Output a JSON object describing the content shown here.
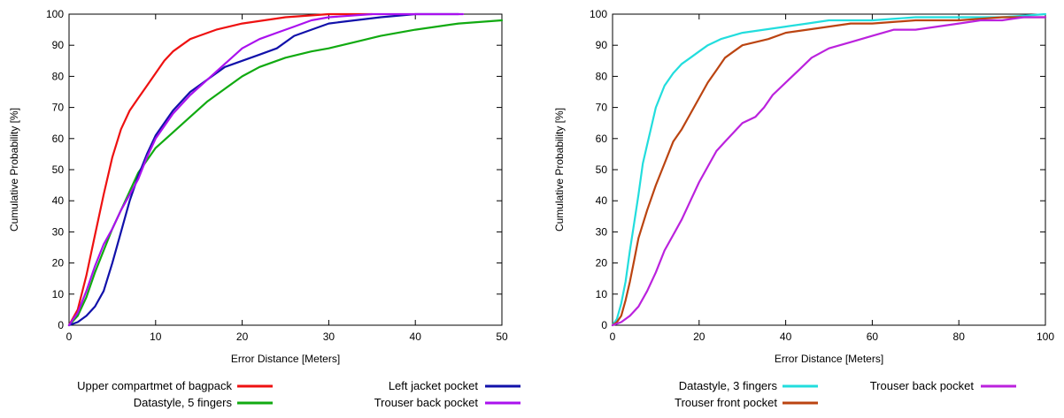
{
  "chart_data": [
    {
      "type": "line",
      "title": "",
      "xlabel": "Error Distance [Meters]",
      "ylabel": "Cumulative Probability [%]",
      "xlim": [
        0,
        50
      ],
      "ylim": [
        0,
        100
      ],
      "xticks": [
        "0",
        "10",
        "20",
        "30",
        "40",
        "50"
      ],
      "yticks": [
        "0",
        "10",
        "20",
        "30",
        "40",
        "50",
        "60",
        "70",
        "80",
        "90",
        "100"
      ],
      "grid": false,
      "legend": "below",
      "series": [
        {
          "name": "Upper compartmet of bagpack",
          "color": "#ee1111",
          "points": [
            [
              0,
              0
            ],
            [
              1,
              5
            ],
            [
              2,
              16
            ],
            [
              3,
              29
            ],
            [
              4,
              42
            ],
            [
              5,
              54
            ],
            [
              6,
              63
            ],
            [
              7,
              69
            ],
            [
              8,
              73
            ],
            [
              9,
              77
            ],
            [
              10,
              81
            ],
            [
              11,
              85
            ],
            [
              12,
              88
            ],
            [
              13,
              90
            ],
            [
              14,
              92
            ],
            [
              15,
              93
            ],
            [
              17,
              95
            ],
            [
              20,
              97
            ],
            [
              25,
              99
            ],
            [
              30,
              100
            ],
            [
              35,
              100
            ]
          ]
        },
        {
          "name": "Datastyle, 5 fingers",
          "color": "#11aa11",
          "points": [
            [
              0,
              0
            ],
            [
              1,
              3
            ],
            [
              2,
              9
            ],
            [
              3,
              17
            ],
            [
              4,
              24
            ],
            [
              5,
              31
            ],
            [
              6,
              37
            ],
            [
              7,
              43
            ],
            [
              8,
              49
            ],
            [
              9,
              53
            ],
            [
              10,
              57
            ],
            [
              12,
              62
            ],
            [
              14,
              67
            ],
            [
              16,
              72
            ],
            [
              18,
              76
            ],
            [
              20,
              80
            ],
            [
              22,
              83
            ],
            [
              25,
              86
            ],
            [
              28,
              88
            ],
            [
              30,
              89
            ],
            [
              33,
              91
            ],
            [
              36,
              93
            ],
            [
              40,
              95
            ],
            [
              45,
              97
            ],
            [
              50,
              98
            ]
          ]
        },
        {
          "name": "Left jacket pocket",
          "color": "#1111aa",
          "points": [
            [
              0,
              0
            ],
            [
              1,
              1
            ],
            [
              2,
              3
            ],
            [
              3,
              6
            ],
            [
              4,
              11
            ],
            [
              5,
              20
            ],
            [
              6,
              30
            ],
            [
              7,
              40
            ],
            [
              8,
              48
            ],
            [
              9,
              55
            ],
            [
              10,
              61
            ],
            [
              12,
              69
            ],
            [
              14,
              75
            ],
            [
              16,
              79
            ],
            [
              18,
              83
            ],
            [
              20,
              85
            ],
            [
              22,
              87
            ],
            [
              24,
              89
            ],
            [
              26,
              93
            ],
            [
              28,
              95
            ],
            [
              30,
              97
            ],
            [
              33,
              98
            ],
            [
              36,
              99
            ],
            [
              40,
              100
            ],
            [
              45,
              100
            ]
          ]
        },
        {
          "name": "Trouser back pocket",
          "color": "#aa11ee",
          "points": [
            [
              0,
              0
            ],
            [
              1,
              4
            ],
            [
              2,
              11
            ],
            [
              3,
              19
            ],
            [
              4,
              26
            ],
            [
              5,
              31
            ],
            [
              6,
              37
            ],
            [
              7,
              42
            ],
            [
              8,
              47
            ],
            [
              9,
              54
            ],
            [
              10,
              60
            ],
            [
              12,
              68
            ],
            [
              14,
              74
            ],
            [
              16,
              79
            ],
            [
              18,
              84
            ],
            [
              20,
              89
            ],
            [
              22,
              92
            ],
            [
              24,
              94
            ],
            [
              26,
              96
            ],
            [
              28,
              98
            ],
            [
              30,
              99
            ],
            [
              35,
              100
            ],
            [
              40,
              100
            ],
            [
              45.5,
              100
            ]
          ]
        }
      ]
    },
    {
      "type": "line",
      "title": "",
      "xlabel": "Error Distance [Meters]",
      "ylabel": "Cumulative Probability [%]",
      "xlim": [
        0,
        100
      ],
      "ylim": [
        0,
        100
      ],
      "xticks": [
        "0",
        "20",
        "40",
        "60",
        "80",
        "100"
      ],
      "yticks": [
        "0",
        "10",
        "20",
        "30",
        "40",
        "50",
        "60",
        "70",
        "80",
        "90",
        "100"
      ],
      "grid": false,
      "legend": "below",
      "series": [
        {
          "name": "Datastyle, 3 fingers",
          "color": "#22dddd",
          "points": [
            [
              0,
              0
            ],
            [
              1,
              2
            ],
            [
              2,
              7
            ],
            [
              3,
              14
            ],
            [
              4,
              24
            ],
            [
              5,
              33
            ],
            [
              6,
              42
            ],
            [
              7,
              52
            ],
            [
              8,
              58
            ],
            [
              9,
              64
            ],
            [
              10,
              70
            ],
            [
              12,
              77
            ],
            [
              14,
              81
            ],
            [
              16,
              84
            ],
            [
              18,
              86
            ],
            [
              20,
              88
            ],
            [
              22,
              90
            ],
            [
              25,
              92
            ],
            [
              30,
              94
            ],
            [
              35,
              95
            ],
            [
              40,
              96
            ],
            [
              45,
              97
            ],
            [
              50,
              98
            ],
            [
              60,
              98
            ],
            [
              70,
              99
            ],
            [
              80,
              99
            ],
            [
              90,
              99
            ],
            [
              100,
              100
            ]
          ]
        },
        {
          "name": "Trouser front pocket",
          "color": "#bb4411",
          "points": [
            [
              0,
              0
            ],
            [
              1,
              1
            ],
            [
              2,
              3
            ],
            [
              3,
              8
            ],
            [
              4,
              14
            ],
            [
              5,
              21
            ],
            [
              6,
              28
            ],
            [
              8,
              37
            ],
            [
              10,
              45
            ],
            [
              12,
              52
            ],
            [
              14,
              59
            ],
            [
              16,
              63
            ],
            [
              18,
              68
            ],
            [
              20,
              73
            ],
            [
              22,
              78
            ],
            [
              24,
              82
            ],
            [
              26,
              86
            ],
            [
              28,
              88
            ],
            [
              30,
              90
            ],
            [
              33,
              91
            ],
            [
              36,
              92
            ],
            [
              40,
              94
            ],
            [
              45,
              95
            ],
            [
              50,
              96
            ],
            [
              55,
              97
            ],
            [
              60,
              97
            ],
            [
              70,
              98
            ],
            [
              80,
              98
            ],
            [
              90,
              99
            ],
            [
              100,
              99
            ]
          ]
        },
        {
          "name": "Trouser back pocket",
          "color": "#bb22dd",
          "points": [
            [
              0,
              0
            ],
            [
              2,
              1
            ],
            [
              4,
              3
            ],
            [
              6,
              6
            ],
            [
              8,
              11
            ],
            [
              10,
              17
            ],
            [
              12,
              24
            ],
            [
              14,
              29
            ],
            [
              16,
              34
            ],
            [
              18,
              40
            ],
            [
              20,
              46
            ],
            [
              22,
              51
            ],
            [
              24,
              56
            ],
            [
              26,
              59
            ],
            [
              28,
              62
            ],
            [
              30,
              65
            ],
            [
              33,
              67
            ],
            [
              35,
              70
            ],
            [
              37,
              74
            ],
            [
              40,
              78
            ],
            [
              43,
              82
            ],
            [
              46,
              86
            ],
            [
              50,
              89
            ],
            [
              55,
              91
            ],
            [
              60,
              93
            ],
            [
              65,
              95
            ],
            [
              70,
              95
            ],
            [
              75,
              96
            ],
            [
              80,
              97
            ],
            [
              85,
              98
            ],
            [
              90,
              98
            ],
            [
              95,
              99
            ],
            [
              100,
              99
            ]
          ]
        }
      ]
    }
  ]
}
